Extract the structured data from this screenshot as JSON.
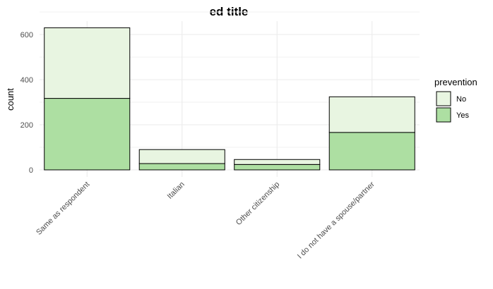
{
  "chart_data": {
    "type": "bar",
    "stacked": true,
    "title": "ed title",
    "xlabel": "",
    "ylabel": "count",
    "categories": [
      "Same as respondent",
      "Italian",
      "Other citizenship",
      "I do not have a spouse/partner"
    ],
    "series": [
      {
        "name": "Yes",
        "values": [
          317,
          28,
          24,
          166
        ],
        "color": "#addfa2"
      },
      {
        "name": "No",
        "values": [
          313,
          62,
          22,
          158
        ],
        "color": "#e8f5e1"
      }
    ],
    "ylim": [
      0,
      660
    ],
    "yticks": [
      0,
      200,
      400,
      600
    ],
    "grid": true,
    "legend": {
      "title": "prevention",
      "position": "right",
      "order": [
        "No",
        "Yes"
      ]
    }
  }
}
